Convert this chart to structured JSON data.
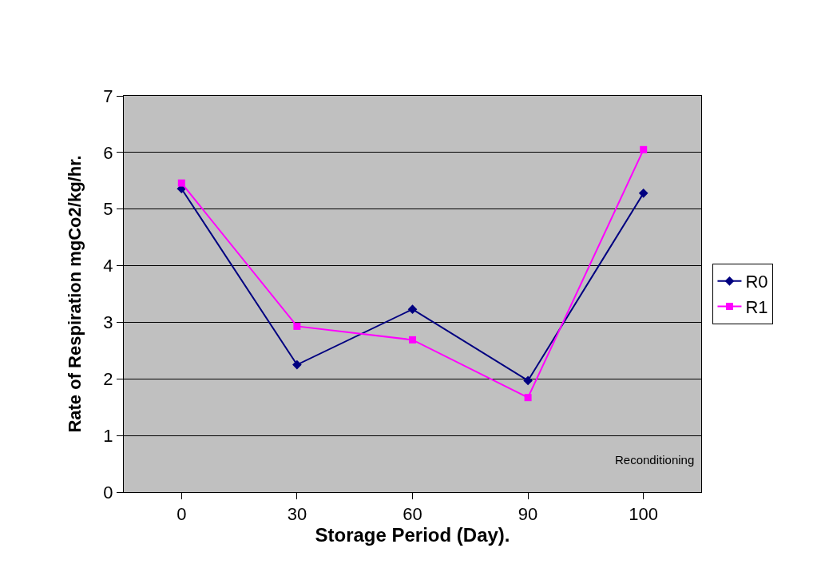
{
  "chart_data": {
    "type": "line",
    "xlabel": "Storage Period (Day).",
    "ylabel": "Rate of Respiration mgCo2/kg/hr.",
    "categories": [
      "0",
      "30",
      "60",
      "90",
      "100"
    ],
    "series": [
      {
        "name": "R0",
        "color": "#000080",
        "marker": "diamond",
        "values": [
          5.36,
          2.25,
          3.23,
          1.97,
          5.28
        ]
      },
      {
        "name": "R1",
        "color": "#ff00ff",
        "marker": "square",
        "values": [
          5.46,
          2.93,
          2.69,
          1.67,
          6.05
        ]
      }
    ],
    "ylim": [
      0,
      7
    ],
    "yticks": [
      0,
      1,
      2,
      3,
      4,
      5,
      6,
      7
    ],
    "grid": "y",
    "legend": "right",
    "line_style": "solid",
    "annotations": [
      "Reconditioning"
    ]
  }
}
